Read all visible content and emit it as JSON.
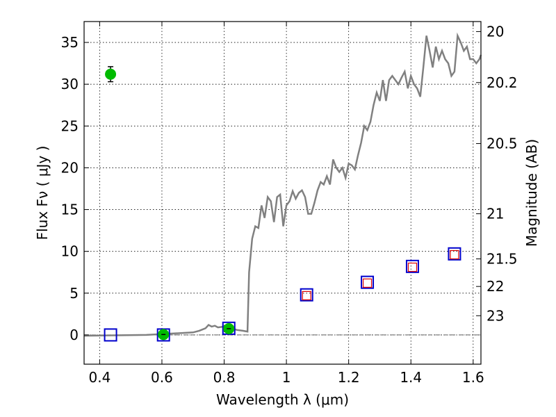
{
  "chart_data": {
    "type": "scatter",
    "xlabel": "Wavelength  λ (μm)",
    "ylabel": "Flux  Fν  ( μJy )",
    "ylabel_right": "Magnitude (AB)",
    "xlim": [
      0.35,
      1.625
    ],
    "ylim": [
      -3.5,
      37.5
    ],
    "grid": true,
    "x_ticks": [
      0.4,
      0.6,
      0.8,
      1.0,
      1.2,
      1.4,
      1.6
    ],
    "x_tick_labels": [
      "0.4",
      "0.6",
      "0.8",
      "1",
      "1.2",
      "1.4",
      "1.6"
    ],
    "y_ticks": [
      0,
      5,
      10,
      15,
      20,
      25,
      30,
      35
    ],
    "y_tick_labels": [
      "0",
      "5",
      "10",
      "15",
      "20",
      "25",
      "30",
      "35"
    ],
    "right_ticks": [
      {
        "label": "20",
        "flux": 36.3
      },
      {
        "label": "20.2",
        "flux": 30.2
      },
      {
        "label": "20.5",
        "flux": 22.9
      },
      {
        "label": "21",
        "flux": 14.5
      },
      {
        "label": "21.5",
        "flux": 9.1
      },
      {
        "label": "22",
        "flux": 5.8
      },
      {
        "label": "23",
        "flux": 2.3
      }
    ],
    "colors": {
      "sed_line": "#808080",
      "detections": "#00bb00",
      "model_squares": "#0000cc",
      "observed_squares": "#dd0000",
      "zero_line": "#606060"
    },
    "series": [
      {
        "kind": "line",
        "x": [
          0.35,
          0.55,
          0.7,
          0.72,
          0.74,
          0.75,
          0.76,
          0.77,
          0.78,
          0.8,
          0.82,
          0.84,
          0.86,
          0.875,
          0.88,
          0.885,
          0.89,
          0.9,
          0.91,
          0.92,
          0.93,
          0.94,
          0.95,
          0.96,
          0.97,
          0.98,
          0.99,
          1.0,
          1.01,
          1.02,
          1.03,
          1.04,
          1.05,
          1.06,
          1.07,
          1.08,
          1.09,
          1.1,
          1.11,
          1.12,
          1.13,
          1.14,
          1.15,
          1.16,
          1.17,
          1.18,
          1.19,
          1.2,
          1.21,
          1.22,
          1.23,
          1.24,
          1.25,
          1.26,
          1.27,
          1.28,
          1.29,
          1.3,
          1.31,
          1.32,
          1.33,
          1.34,
          1.35,
          1.36,
          1.37,
          1.38,
          1.39,
          1.4,
          1.41,
          1.42,
          1.43,
          1.44,
          1.45,
          1.46,
          1.47,
          1.48,
          1.49,
          1.5,
          1.51,
          1.52,
          1.53,
          1.54,
          1.55,
          1.56,
          1.57,
          1.58,
          1.59,
          1.6,
          1.61,
          1.62,
          1.625
        ],
        "y": [
          -0.1,
          0.0,
          0.3,
          0.5,
          0.8,
          1.2,
          1.0,
          1.1,
          0.9,
          1.0,
          0.9,
          0.6,
          0.5,
          0.4,
          7.5,
          9.5,
          11.5,
          13.0,
          12.8,
          15.5,
          14.0,
          16.5,
          16.0,
          13.5,
          16.5,
          16.8,
          13.0,
          15.5,
          16.0,
          17.2,
          16.3,
          17.0,
          17.3,
          16.5,
          14.5,
          14.5,
          15.8,
          17.3,
          18.3,
          18.0,
          19.0,
          18.0,
          21.0,
          20.0,
          19.5,
          20.0,
          18.8,
          20.5,
          20.3,
          19.8,
          21.5,
          23.0,
          25.0,
          24.5,
          25.5,
          27.5,
          29.0,
          28.0,
          30.5,
          28.0,
          30.5,
          31.0,
          30.5,
          30.0,
          30.8,
          31.5,
          29.5,
          31.0,
          30.0,
          29.5,
          28.5,
          32.0,
          35.8,
          34.0,
          32.0,
          34.5,
          33.0,
          34.0,
          33.0,
          32.5,
          31.0,
          31.5,
          35.8,
          35.0,
          34.0,
          34.5,
          33.0,
          33.0,
          32.5,
          33.0,
          33.5
        ]
      },
      {
        "kind": "points",
        "name": "detections",
        "x": [
          0.435,
          0.605,
          0.815
        ],
        "y": [
          31.2,
          0.05,
          0.75
        ],
        "yerr": [
          0.9,
          0.0,
          0.0
        ]
      },
      {
        "kind": "squares",
        "name": "model",
        "x": [
          0.435,
          0.605,
          0.815,
          1.065,
          1.26,
          1.405,
          1.54
        ],
        "y": [
          0.0,
          0.0,
          0.8,
          4.8,
          6.3,
          8.2,
          9.7
        ]
      },
      {
        "kind": "squares",
        "name": "observed",
        "x": [
          1.065,
          1.26,
          1.405,
          1.54
        ],
        "y": [
          4.7,
          6.2,
          8.1,
          9.6
        ]
      }
    ]
  }
}
